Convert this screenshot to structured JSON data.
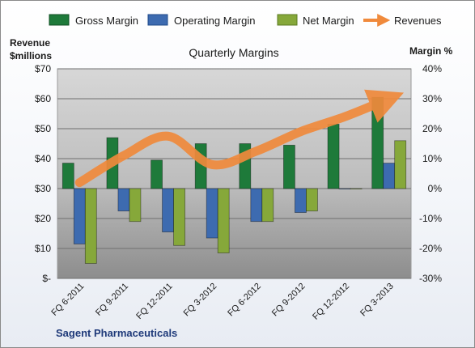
{
  "chart_data": {
    "type": "bar",
    "title": "Quarterly Margins",
    "left_axis_label_line1": "Revenue",
    "left_axis_label_line2": "$millions",
    "right_axis_label": "Margin %",
    "company": "Sagent Pharmaceuticals",
    "categories": [
      "FQ 6-2011",
      "FQ 9-2011",
      "FQ 12-2011",
      "FQ 3-2012",
      "FQ 6-2012",
      "FQ 9-2012",
      "FQ 12-2012",
      "FQ 3-2013"
    ],
    "left_ticks": [
      "$70",
      "$60",
      "$50",
      "$40",
      "$30",
      "$20",
      "$10",
      "$-"
    ],
    "right_ticks": [
      "40%",
      "30%",
      "20%",
      "10%",
      "0%",
      "-10%",
      "-20%",
      "-30%"
    ],
    "ylim_left": [
      0,
      70
    ],
    "ylim_right": [
      -30,
      40
    ],
    "legend_position": "top",
    "grid": true,
    "series": [
      {
        "name": "Gross Margin",
        "axis": "right",
        "kind": "bar",
        "color": "#1e7a3a",
        "values": [
          8.5,
          17,
          9.5,
          15,
          15,
          14.5,
          21.5,
          30.5
        ]
      },
      {
        "name": "Operating Margin",
        "axis": "right",
        "kind": "bar",
        "color": "#3d6bb0",
        "values": [
          -18.5,
          -7.5,
          -14.5,
          -16.5,
          -11,
          -8,
          0,
          8.5
        ]
      },
      {
        "name": "Net Margin",
        "axis": "right",
        "kind": "bar",
        "color": "#86a83a",
        "values": [
          -25,
          -11,
          -19,
          -21.5,
          -11,
          -7.5,
          0,
          16
        ]
      },
      {
        "name": "Revenues",
        "axis": "left",
        "kind": "line",
        "color": "#f08a3c",
        "values": [
          32,
          41,
          47.5,
          38,
          42.5,
          49,
          54,
          60
        ]
      }
    ]
  }
}
